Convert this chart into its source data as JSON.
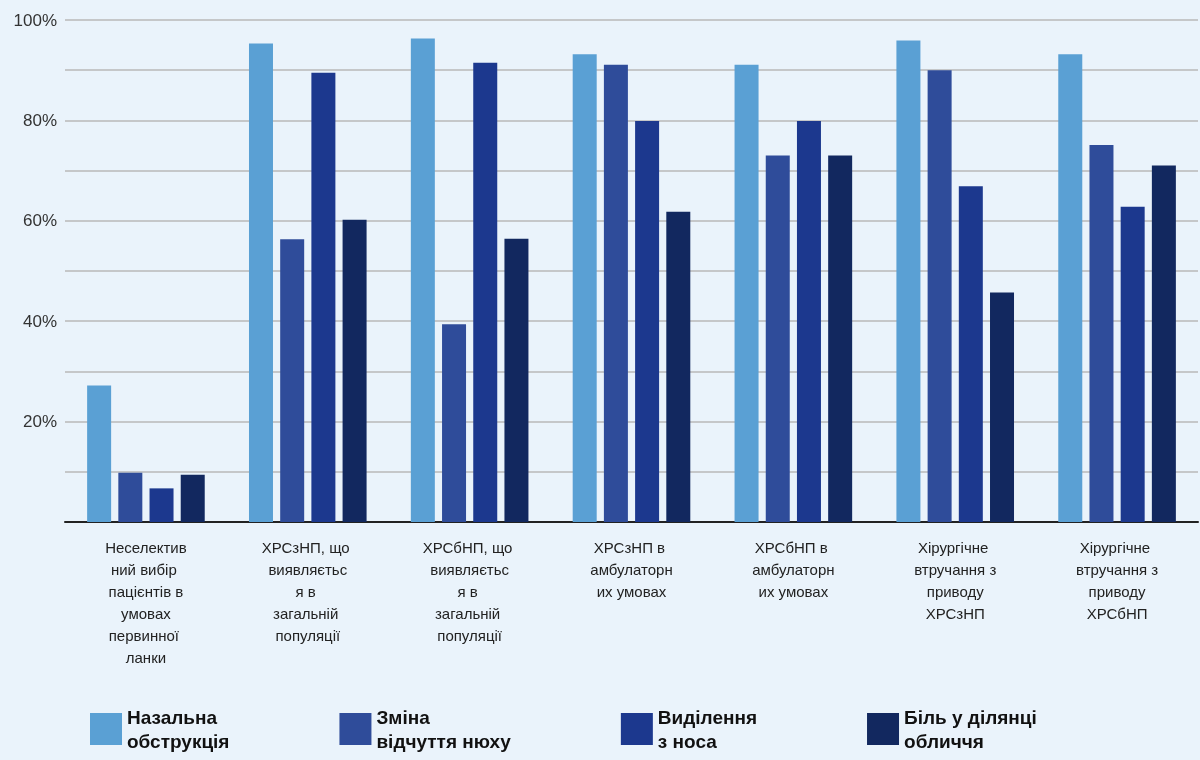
{
  "chart_data": {
    "type": "bar",
    "categories": [
      "Неселективний вибір пацієнтів в умовах первинної ланки",
      "ХРСзНП, що виявляється в загальній популяції",
      "ХРСбНП, що виявляється в загальній популяції",
      "ХРСзНП в амбулаторних умовах",
      "ХРСбНП в амбулаторних умовах",
      "Хірургічне втручання з приводу ХРСзНП",
      "Хірургічне втручання з приводу ХРСбНП"
    ],
    "series": [
      {
        "name": "Назальна обструкція",
        "color": "#5aa0d4",
        "values": [
          27.2,
          95.3,
          96.3,
          93.2,
          91.1,
          95.9,
          93.2
        ]
      },
      {
        "name": "Зміна відчуття нюху",
        "color": "#2f4c9a",
        "values": [
          9.8,
          56.3,
          39.4,
          91.1,
          73.0,
          90.0,
          75.1
        ]
      },
      {
        "name": "Виділення з носа",
        "color": "#1c388e",
        "values": [
          6.7,
          89.5,
          91.5,
          79.9,
          79.9,
          66.9,
          62.8
        ]
      },
      {
        "name": "Біль у ділянці обличчя",
        "color": "#12285f",
        "values": [
          9.4,
          60.2,
          56.4,
          61.8,
          73.0,
          45.7,
          71.0
        ]
      }
    ],
    "ylim": [
      0,
      100
    ],
    "yticks": [
      {
        "value": 0,
        "label": null
      },
      {
        "value": 10,
        "label": null
      },
      {
        "value": 20,
        "label": "20%"
      },
      {
        "value": 30,
        "label": null
      },
      {
        "value": 40,
        "label": "40%"
      },
      {
        "value": 50,
        "label": null
      },
      {
        "value": 60,
        "label": "60%"
      },
      {
        "value": 70,
        "label": null
      },
      {
        "value": 80,
        "label": "80%"
      },
      {
        "value": 90,
        "label": null
      },
      {
        "value": 100,
        "label": "100%"
      }
    ],
    "grid": "y",
    "legend": "bottom"
  }
}
